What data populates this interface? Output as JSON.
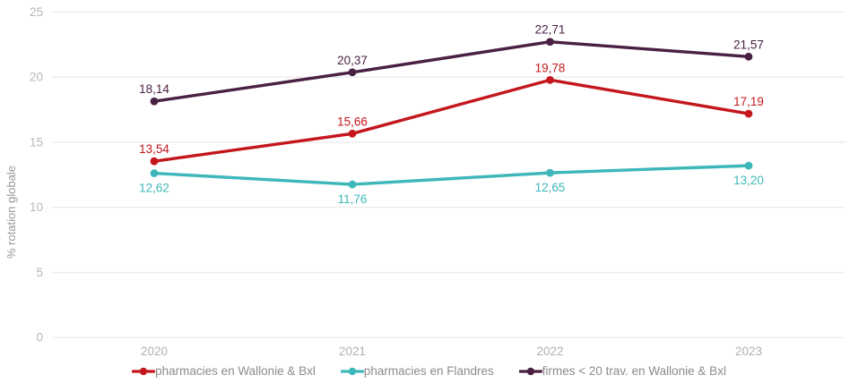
{
  "chart_data": {
    "type": "line",
    "title": "",
    "xlabel": "",
    "ylabel": "% rotation globale",
    "categories": [
      "2020",
      "2021",
      "2022",
      "2023"
    ],
    "y_ticks": [
      0,
      5,
      10,
      15,
      20,
      25
    ],
    "ylim": [
      0,
      25
    ],
    "grid": "horizontal-only",
    "legend_position": "bottom",
    "decimal_separator": ",",
    "series": [
      {
        "name": "pharmacies en Wallonie & Bxl",
        "color": "#c4161d",
        "values": [
          13.54,
          15.66,
          19.78,
          17.19
        ],
        "point_labels": [
          "13,54",
          "15,66",
          "19,78",
          "17,19"
        ],
        "label_position": "above"
      },
      {
        "name": "pharmacies en Flandres",
        "color": "#3db7ba",
        "values": [
          12.62,
          11.76,
          12.65,
          13.2
        ],
        "point_labels": [
          "12,62",
          "11,76",
          "12,65",
          "13,20"
        ],
        "label_position": "below"
      },
      {
        "name": "firmes < 20 trav. en Wallonie & Bxl",
        "color": "#4a2142",
        "values": [
          18.14,
          20.37,
          22.71,
          21.57
        ],
        "point_labels": [
          "18,14",
          "20,37",
          "22,71",
          "21,57"
        ],
        "label_position": "above"
      }
    ]
  }
}
